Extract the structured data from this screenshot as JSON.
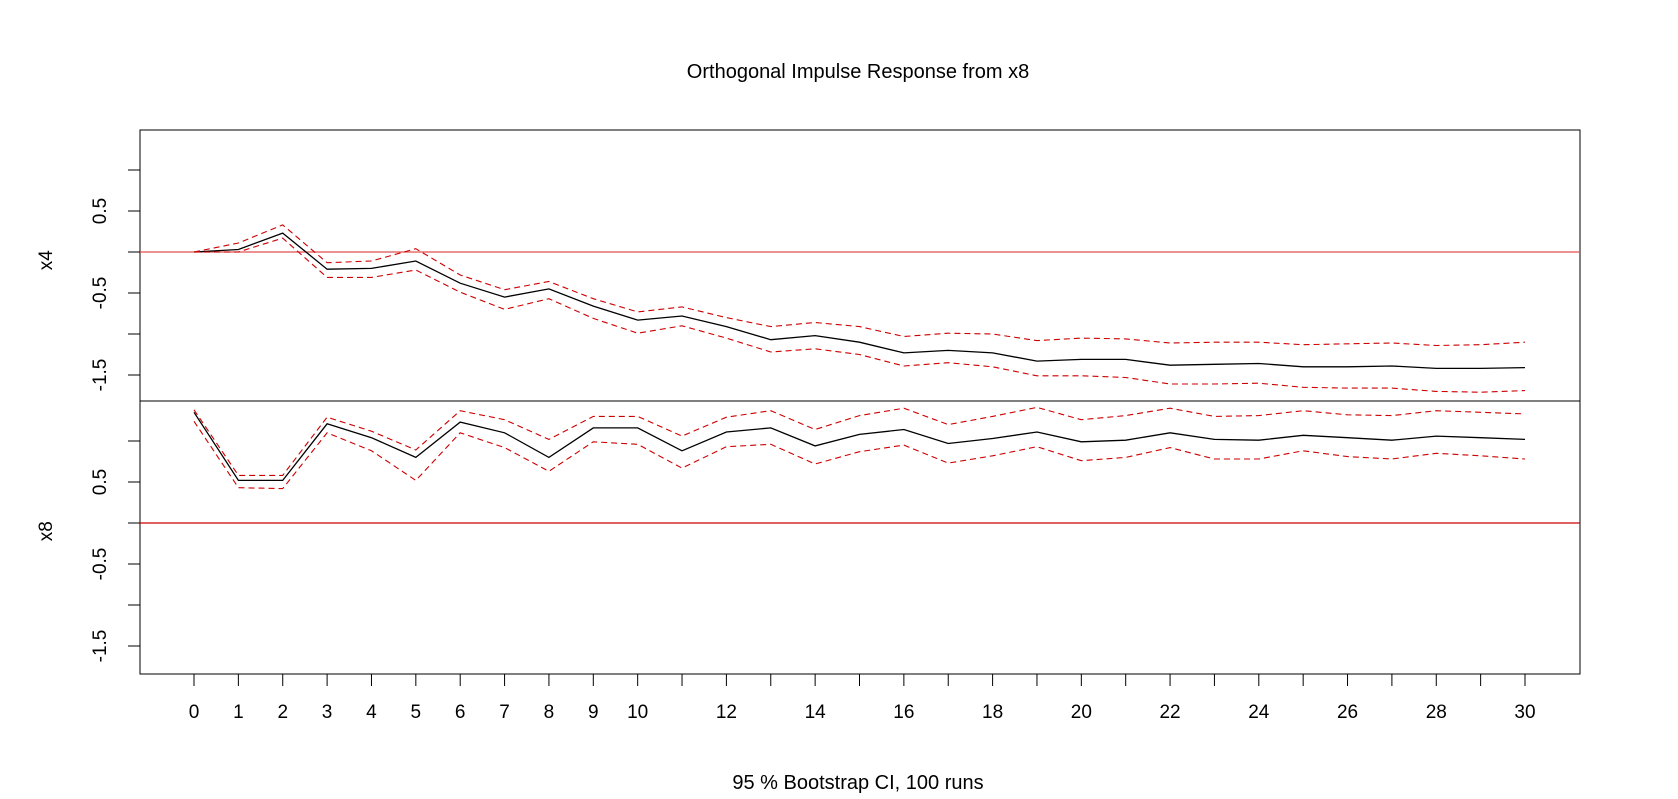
{
  "chart_data": {
    "type": "line",
    "title": "Orthogonal Impulse Response from x8",
    "subtitle": "95 % Bootstrap CI,  100 runs",
    "x": [
      0,
      1,
      2,
      3,
      4,
      5,
      6,
      7,
      8,
      9,
      10,
      11,
      12,
      13,
      14,
      15,
      16,
      17,
      18,
      19,
      20,
      21,
      22,
      23,
      24,
      25,
      26,
      27,
      28,
      29,
      30
    ],
    "x_tick_labels": [
      "0",
      "1",
      "2",
      "3",
      "4",
      "5",
      "6",
      "7",
      "8",
      "9",
      "10",
      "12",
      "14",
      "16",
      "18",
      "20",
      "22",
      "24",
      "26",
      "28",
      "30"
    ],
    "x_tick_values": [
      0,
      1,
      2,
      3,
      4,
      5,
      6,
      7,
      8,
      9,
      10,
      12,
      14,
      16,
      18,
      20,
      22,
      24,
      26,
      28,
      30
    ],
    "ylim": [
      -2.0,
      1.0
    ],
    "y_tick_labels": [
      "-1.5",
      "-0.5",
      "0.5"
    ],
    "y_tick_values": [
      -1.5,
      -0.5,
      0.5
    ],
    "y_minor_ticks": [
      -1.0,
      0.0,
      1.0
    ],
    "colors": {
      "response": "#000000",
      "ci": "#cc0000",
      "zero": "#e05050"
    },
    "panels": [
      {
        "name": "x4",
        "series": [
          {
            "name": "",
            "role": "response",
            "values": [
              0.0,
              0.03,
              0.23,
              -0.21,
              -0.2,
              -0.11,
              -0.38,
              -0.55,
              -0.45,
              -0.66,
              -0.83,
              -0.78,
              -0.91,
              -1.07,
              -1.02,
              -1.1,
              -1.23,
              -1.2,
              -1.23,
              -1.33,
              -1.31,
              -1.31,
              -1.38,
              -1.37,
              -1.36,
              -1.4,
              -1.4,
              -1.39,
              -1.42,
              -1.42,
              -1.41
            ]
          },
          {
            "name": "",
            "role": "upper",
            "values": [
              0.0,
              0.11,
              0.33,
              -0.13,
              -0.11,
              0.04,
              -0.28,
              -0.46,
              -0.36,
              -0.57,
              -0.73,
              -0.67,
              -0.8,
              -0.91,
              -0.86,
              -0.91,
              -1.03,
              -0.99,
              -1.0,
              -1.08,
              -1.05,
              -1.06,
              -1.11,
              -1.1,
              -1.1,
              -1.13,
              -1.12,
              -1.11,
              -1.14,
              -1.13,
              -1.1
            ]
          },
          {
            "name": "",
            "role": "lower",
            "values": [
              0.0,
              0.0,
              0.17,
              -0.31,
              -0.31,
              -0.22,
              -0.49,
              -0.7,
              -0.57,
              -0.81,
              -0.99,
              -0.9,
              -1.05,
              -1.22,
              -1.18,
              -1.25,
              -1.39,
              -1.35,
              -1.4,
              -1.51,
              -1.51,
              -1.53,
              -1.61,
              -1.61,
              -1.6,
              -1.65,
              -1.66,
              -1.66,
              -1.7,
              -1.71,
              -1.69
            ]
          }
        ]
      },
      {
        "name": "x8",
        "series": [
          {
            "name": "",
            "role": "response",
            "values": [
              1.35,
              0.52,
              0.52,
              1.21,
              1.04,
              0.8,
              1.23,
              1.1,
              0.8,
              1.16,
              1.16,
              0.88,
              1.11,
              1.16,
              0.94,
              1.08,
              1.14,
              0.97,
              1.03,
              1.11,
              0.99,
              1.01,
              1.1,
              1.02,
              1.01,
              1.07,
              1.04,
              1.01,
              1.06,
              1.04,
              1.02
            ]
          },
          {
            "name": "",
            "role": "upper",
            "values": [
              1.38,
              0.58,
              0.58,
              1.29,
              1.12,
              0.89,
              1.37,
              1.26,
              1.02,
              1.3,
              1.3,
              1.06,
              1.29,
              1.37,
              1.14,
              1.31,
              1.4,
              1.2,
              1.3,
              1.41,
              1.26,
              1.31,
              1.4,
              1.3,
              1.31,
              1.37,
              1.32,
              1.31,
              1.37,
              1.35,
              1.33
            ]
          },
          {
            "name": "",
            "role": "lower",
            "values": [
              1.24,
              0.43,
              0.42,
              1.1,
              0.88,
              0.52,
              1.1,
              0.92,
              0.63,
              0.99,
              0.96,
              0.67,
              0.93,
              0.96,
              0.72,
              0.87,
              0.95,
              0.73,
              0.82,
              0.93,
              0.76,
              0.8,
              0.92,
              0.78,
              0.78,
              0.88,
              0.81,
              0.78,
              0.85,
              0.82,
              0.78
            ]
          }
        ]
      }
    ]
  }
}
